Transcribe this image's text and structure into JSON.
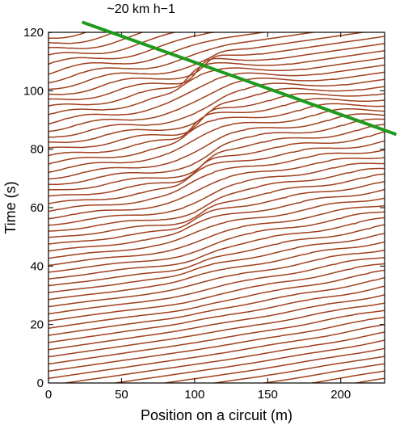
{
  "chart_data": {
    "type": "line",
    "title": "",
    "xlabel": "Position on a circuit (m)",
    "ylabel": "Time (s)",
    "xlim": [
      0,
      230
    ],
    "ylim": [
      0,
      120
    ],
    "xticks": [
      0,
      50,
      100,
      150,
      200
    ],
    "yticks": [
      0,
      20,
      40,
      60,
      80,
      100,
      120
    ],
    "grid": false,
    "legend": "none",
    "series_description": "vehicle trajectories (position vs time) on a circular track; stop-and-go waves appear as kinks",
    "trajectory_color": "#a0401e",
    "trajectory_count": 110,
    "trajectory_slope_s_per_m": 0.072,
    "trajectory_spacing_s": 2.45,
    "jam_wave": {
      "speed_label": "~20 km h−1",
      "color": "#1f9a1f",
      "line_points": [
        [
          23,
          123.5
        ],
        [
          230,
          86.5
        ]
      ],
      "label_position": [
        40,
        125.5
      ]
    }
  }
}
